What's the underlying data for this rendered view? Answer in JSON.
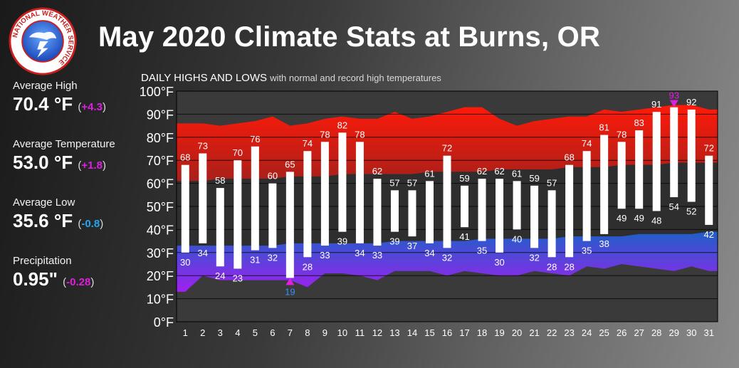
{
  "header": {
    "title": "May 2020 Climate Stats at Burns, OR",
    "logo_text": "NATIONAL WEATHER SERVICE"
  },
  "stats": [
    {
      "label": "Average High",
      "value": "70.4 °F",
      "departure": "+4.3",
      "departure_color": "#e01ee0"
    },
    {
      "label": "Average Temperature",
      "value": "53.0 °F",
      "departure": "+1.8",
      "departure_color": "#e01ee0"
    },
    {
      "label": "Average Low",
      "value": "35.6 °F",
      "departure": "-0.8",
      "departure_color": "#22a7f0"
    },
    {
      "label": "Precipitation",
      "value": "0.95\"",
      "departure": "-0.28",
      "departure_color": "#e01ee0"
    }
  ],
  "chart_heading": {
    "main": "DAILY HIGHS AND LOWS",
    "sub": "with normal and record high temperatures"
  },
  "chart_data": {
    "type": "bar",
    "title": "DAILY HIGHS AND LOWS",
    "subtitle": "with normal and record high temperatures",
    "xlabel": "",
    "ylabel": "",
    "ylim": [
      0,
      100
    ],
    "y_ticks": [
      "0°F",
      "10°F",
      "20°F",
      "30°F",
      "40°F",
      "50°F",
      "60°F",
      "70°F",
      "80°F",
      "90°F",
      "100°F"
    ],
    "grid": true,
    "categories": [
      "1",
      "2",
      "3",
      "4",
      "5",
      "6",
      "7",
      "8",
      "9",
      "10",
      "11",
      "12",
      "13",
      "14",
      "15",
      "16",
      "17",
      "18",
      "19",
      "20",
      "21",
      "22",
      "23",
      "24",
      "25",
      "26",
      "27",
      "28",
      "29",
      "30",
      "31"
    ],
    "series": [
      {
        "values": [
          68,
          73,
          58,
          70,
          76,
          60,
          65,
          74,
          78,
          82,
          78,
          62,
          57,
          57,
          61,
          72,
          59,
          62,
          62,
          61,
          59,
          57,
          68,
          74,
          81,
          78,
          83,
          91,
          93,
          92,
          72
        ]
      },
      {
        "values": [
          30,
          34,
          24,
          23,
          31,
          32,
          19,
          28,
          33,
          39,
          34,
          33,
          39,
          37,
          34,
          32,
          41,
          35,
          30,
          40,
          32,
          28,
          28,
          35,
          38,
          49,
          49,
          48,
          54,
          52,
          42
        ]
      }
    ],
    "record_high": [
      86,
      86,
      85,
      86,
      87,
      89,
      85,
      86,
      88,
      89,
      88,
      88,
      91,
      88,
      89,
      91,
      93,
      93,
      88,
      85,
      87,
      88,
      89,
      89,
      92,
      91,
      92,
      93,
      94,
      94,
      92
    ],
    "normal_high": [
      61,
      61,
      62,
      62,
      62,
      62,
      63,
      63,
      63,
      64,
      64,
      64,
      64,
      64,
      65,
      65,
      65,
      65,
      66,
      66,
      66,
      66,
      67,
      67,
      67,
      68,
      68,
      68,
      69,
      69,
      69
    ],
    "normal_low": [
      33,
      33,
      33,
      33,
      33,
      33,
      34,
      34,
      34,
      34,
      34,
      34,
      35,
      35,
      35,
      35,
      35,
      36,
      36,
      36,
      36,
      36,
      37,
      37,
      37,
      37,
      38,
      38,
      38,
      38,
      39
    ],
    "record_low": [
      13,
      20,
      18,
      18,
      18,
      18,
      18,
      15,
      21,
      21,
      20,
      18,
      22,
      22,
      22,
      20,
      22,
      21,
      20,
      20,
      22,
      21,
      20,
      24,
      23,
      25,
      24,
      23,
      22,
      24,
      22
    ],
    "record_high_days": [
      29
    ],
    "record_low_days": [
      7
    ],
    "colors": {
      "record_high_band": "#ff2a1a",
      "normal_band": "#2e2e2e",
      "record_low_band": "#8a2be2",
      "bar": "#ffffff",
      "record_marker": "#e01ee0",
      "record_low_label": "#3b8cff"
    }
  }
}
